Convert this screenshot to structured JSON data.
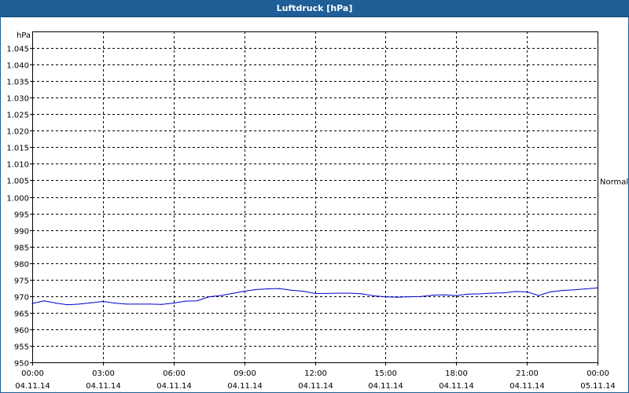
{
  "window": {
    "title": "Luftdruck [hPa]"
  },
  "chart_data": {
    "type": "line",
    "title": "Luftdruck [hPa]",
    "ylabel": "hPa",
    "xlabel": "",
    "ylim": [
      950,
      1045
    ],
    "y_ticks": [
      "950",
      "955",
      "960",
      "965",
      "970",
      "975",
      "980",
      "985",
      "990",
      "995",
      "1.000",
      "1.005",
      "1.010",
      "1.015",
      "1.020",
      "1.025",
      "1.030",
      "1.035",
      "1.040",
      "1.045"
    ],
    "x_ticks": [
      {
        "time": "00:00",
        "date": "04.11.14"
      },
      {
        "time": "03:00",
        "date": "04.11.14"
      },
      {
        "time": "06:00",
        "date": "04.11.14"
      },
      {
        "time": "09:00",
        "date": "04.11.14"
      },
      {
        "time": "12:00",
        "date": "04.11.14"
      },
      {
        "time": "15:00",
        "date": "04.11.14"
      },
      {
        "time": "18:00",
        "date": "04.11.14"
      },
      {
        "time": "21:00",
        "date": "04.11.14"
      },
      {
        "time": "00:00",
        "date": "05.11.14"
      }
    ],
    "grid": true,
    "reference_line": {
      "label": "Normal",
      "value": 1005
    },
    "series": [
      {
        "color": "#0000cc",
        "x": [
          "00:00",
          "00:30",
          "01:00",
          "01:30",
          "02:00",
          "02:30",
          "03:00",
          "03:30",
          "04:00",
          "04:30",
          "05:00",
          "05:30",
          "06:00",
          "06:30",
          "07:00",
          "07:30",
          "08:00",
          "08:30",
          "09:00",
          "09:30",
          "10:00",
          "10:30",
          "11:00",
          "11:30",
          "12:00",
          "12:30",
          "13:00",
          "13:30",
          "14:00",
          "14:30",
          "15:00",
          "15:30",
          "16:00",
          "16:30",
          "17:00",
          "17:30",
          "18:00",
          "18:30",
          "19:00",
          "19:30",
          "20:00",
          "20:30",
          "21:00",
          "21:30",
          "22:00",
          "22:30",
          "23:00",
          "23:30",
          "24:00"
        ],
        "values": [
          967.8,
          968.6,
          967.9,
          967.4,
          967.6,
          968.0,
          968.4,
          967.9,
          967.6,
          967.6,
          967.6,
          967.5,
          967.9,
          968.5,
          968.6,
          969.8,
          970.2,
          970.8,
          971.5,
          972.0,
          972.2,
          972.3,
          971.8,
          971.5,
          970.8,
          970.8,
          970.9,
          970.9,
          970.7,
          970.1,
          969.8,
          969.7,
          969.8,
          969.9,
          970.3,
          970.4,
          970.2,
          970.6,
          970.7,
          970.9,
          971.0,
          971.4,
          971.3,
          970.2,
          971.3,
          971.7,
          971.9,
          972.2,
          972.5
        ]
      }
    ]
  }
}
